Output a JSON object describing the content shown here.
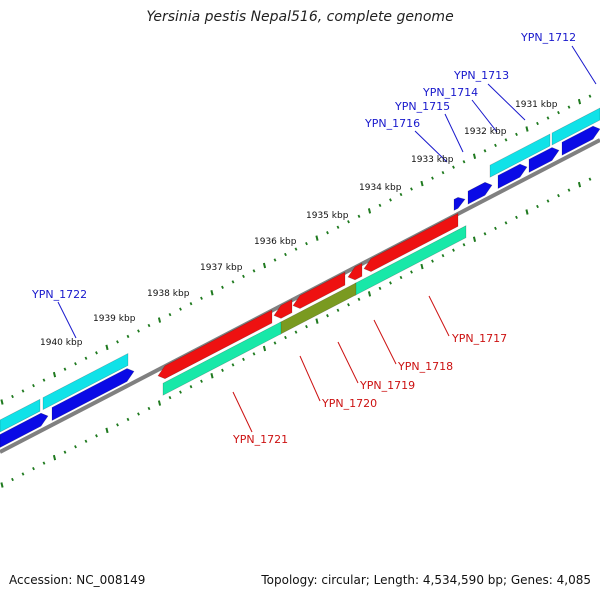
{
  "title": "Yersinia pestis Nepal516, complete genome",
  "footer": {
    "accession": "Accession: NC_008149",
    "summary": "Topology: circular; Length: 4,534,590 bp; Genes: 4,085"
  },
  "colors": {
    "forward_gene": "#0a0ae6",
    "forward_cds": "#10e2e8",
    "reverse_gene": "#ee1111",
    "reverse_cds": "#18e8a8",
    "reverse_overlap": "#7a9a20",
    "backbone": "#808080",
    "tick": "#1f7a1f",
    "forward_label": "#1818cc",
    "reverse_label": "#cc1111"
  },
  "kbp_ticks": [
    "1931 kbp",
    "1932 kbp",
    "1933 kbp",
    "1934 kbp",
    "1935 kbp",
    "1936 kbp",
    "1937 kbp",
    "1938 kbp",
    "1939 kbp",
    "1940 kbp"
  ],
  "genes": {
    "forward": [
      "YPN_1712",
      "YPN_1713",
      "YPN_1714",
      "YPN_1715",
      "YPN_1716",
      "YPN_1722"
    ],
    "reverse": [
      "YPN_1717",
      "YPN_1718",
      "YPN_1719",
      "YPN_1720",
      "YPN_1721"
    ]
  }
}
